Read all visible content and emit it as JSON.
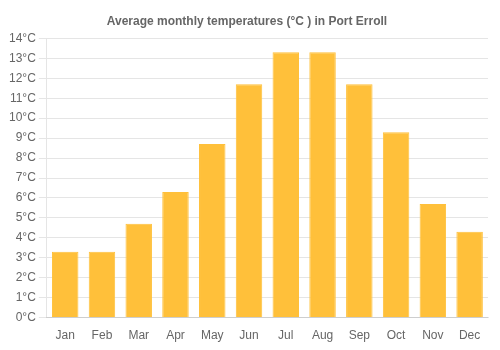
{
  "chart_data": {
    "type": "bar",
    "title": "Average monthly temperatures (°C ) in Port Erroll",
    "categories": [
      "Jan",
      "Feb",
      "Mar",
      "Apr",
      "May",
      "Jun",
      "Jul",
      "Aug",
      "Sep",
      "Oct",
      "Nov",
      "Dec"
    ],
    "values": [
      3.3,
      3.3,
      4.7,
      6.3,
      8.7,
      11.7,
      13.3,
      13.3,
      11.7,
      9.3,
      5.7,
      4.3
    ],
    "color": "#FFC03A",
    "ylim": [
      0,
      14
    ],
    "yticks": [
      {
        "value": 0,
        "label": "0°C"
      },
      {
        "value": 1,
        "label": "1°C"
      },
      {
        "value": 2,
        "label": "2°C"
      },
      {
        "value": 3,
        "label": "3°C"
      },
      {
        "value": 4,
        "label": "4°C"
      },
      {
        "value": 5,
        "label": "5°C"
      },
      {
        "value": 6,
        "label": "6°C"
      },
      {
        "value": 7,
        "label": "7°C"
      },
      {
        "value": 8,
        "label": "8°C"
      },
      {
        "value": 9,
        "label": "9°C"
      },
      {
        "value": 10,
        "label": "10°C"
      },
      {
        "value": 11,
        "label": "11°C"
      },
      {
        "value": 12,
        "label": "12°C"
      },
      {
        "value": 13,
        "label": "13°C"
      },
      {
        "value": 14,
        "label": "14°C"
      }
    ],
    "grid": true
  }
}
